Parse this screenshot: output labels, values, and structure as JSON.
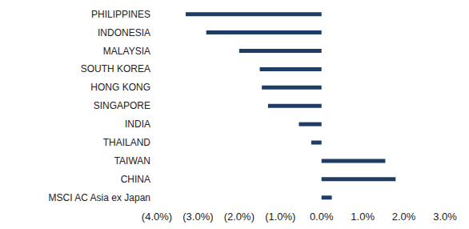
{
  "chart_data": {
    "type": "bar",
    "orientation": "horizontal",
    "categories": [
      "PHILIPPINES",
      "INDONESIA",
      "MALAYSIA",
      "SOUTH KOREA",
      "HONG KONG",
      "SINGAPORE",
      "INDIA",
      "THAILAND",
      "TAIWAN",
      "CHINA",
      "MSCI AC Asia ex Japan"
    ],
    "values": [
      -3.3,
      -2.8,
      -2.0,
      -1.5,
      -1.45,
      -1.3,
      -0.55,
      -0.25,
      1.55,
      1.8,
      0.25
    ],
    "color": "#1f3d64",
    "xlim": [
      -4,
      3
    ],
    "xticks": [
      {
        "value": -4,
        "label": "(4.0%)"
      },
      {
        "value": -3,
        "label": "(3.0%)"
      },
      {
        "value": -2,
        "label": "(2.0%)"
      },
      {
        "value": -1,
        "label": "(1.0%)"
      },
      {
        "value": 0,
        "label": "0.0%"
      },
      {
        "value": 1,
        "label": "1.0%"
      },
      {
        "value": 2,
        "label": "2.0%"
      },
      {
        "value": 3,
        "label": "3.0%"
      }
    ],
    "grid": false
  }
}
